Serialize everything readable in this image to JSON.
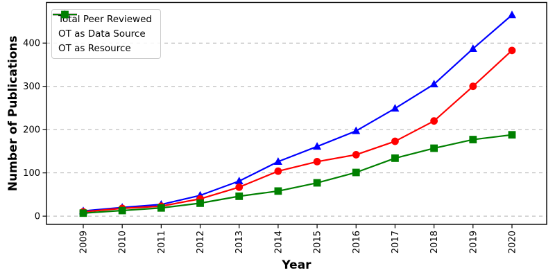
{
  "chart_data": {
    "type": "line",
    "title": "",
    "xlabel": "Year",
    "ylabel": "Number of Publications",
    "categories": [
      "2009",
      "2010",
      "2011",
      "2012",
      "2013",
      "2014",
      "2015",
      "2016",
      "2017",
      "2018",
      "2019",
      "2020"
    ],
    "series": [
      {
        "name": "Total Peer Reviewed",
        "color": "#0000ff",
        "marker": "triangle",
        "values": [
          12,
          20,
          27,
          48,
          81,
          126,
          161,
          197,
          249,
          305,
          387,
          465
        ]
      },
      {
        "name": "OT as Data Source",
        "color": "#ff0000",
        "marker": "circle",
        "values": [
          10,
          18,
          23,
          40,
          67,
          104,
          126,
          142,
          173,
          220,
          300,
          383
        ]
      },
      {
        "name": "OT as Resource",
        "color": "#008000",
        "marker": "square",
        "values": [
          7,
          13,
          19,
          30,
          46,
          58,
          77,
          101,
          134,
          157,
          177,
          188
        ]
      }
    ],
    "yticks": [
      0,
      100,
      200,
      300,
      400
    ],
    "ylim": [
      -19,
      494
    ],
    "grid": "horizontal-dashed",
    "legend_position": "top-left",
    "style": {
      "gridline_color": "#b0b0b0",
      "axis_color": "#000000",
      "background": "#ffffff",
      "tick_label_color": "#000000"
    }
  }
}
